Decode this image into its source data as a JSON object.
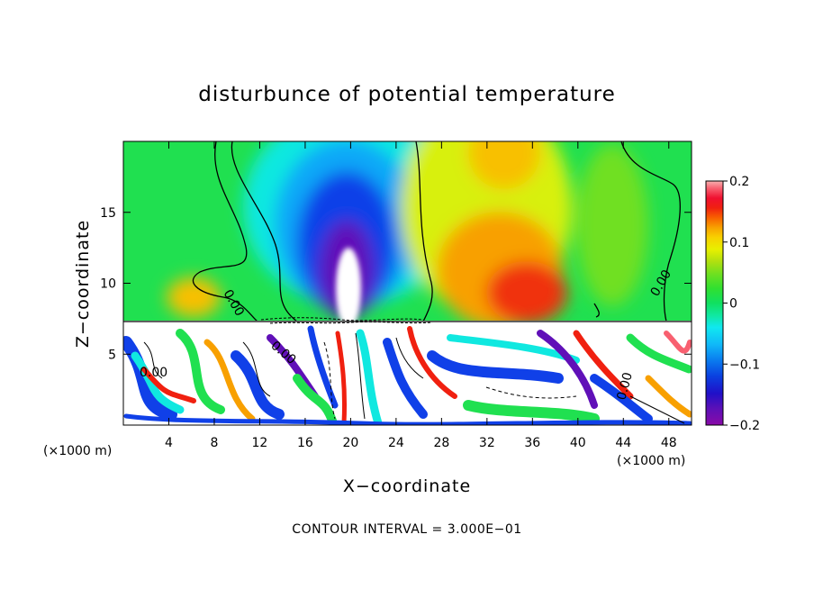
{
  "chart_data": {
    "type": "heatmap",
    "title": "disturbunce of potential temperature",
    "xlabel": "X−coordinate",
    "ylabel": "Z−coordinate",
    "x_unit": "(×1000 m)",
    "x_ticks": [
      4,
      8,
      12,
      16,
      20,
      24,
      28,
      32,
      36,
      40,
      44,
      48
    ],
    "y_ticks": [
      5,
      10,
      15
    ],
    "xlim": [
      0,
      50
    ],
    "ylim": [
      0,
      20
    ],
    "contour_interval_text": "CONTOUR INTERVAL = 3.000E−01",
    "contour_labels": [
      "0.00",
      "0.00",
      "0.00",
      "0.00",
      "0.00"
    ],
    "colorbar": {
      "range": [
        -0.2,
        0.2
      ],
      "ticks": [
        "0.2",
        "0.1",
        "0",
        "−0.1",
        "−0.2"
      ],
      "colors": [
        "#8a0aa8",
        "#5a10b8",
        "#2010c8",
        "#0a40e0",
        "#0a80f0",
        "#10b8f8",
        "#10e8f0",
        "#10e8a0",
        "#10e060",
        "#30e030",
        "#70e020",
        "#b0e010",
        "#e8f000",
        "#f8d000",
        "#f8a000",
        "#f86000",
        "#f02010",
        "#f01030",
        "#f86070",
        "#f8b0b0"
      ]
    },
    "fields_described": "Negative anomaly plume (min about −0.2) centred near x=20 in upper layer, positive anomaly (up to about 0.12) near x=32–38; turbulent lower layer below z≈7 with values saturating beyond ±0.2"
  }
}
